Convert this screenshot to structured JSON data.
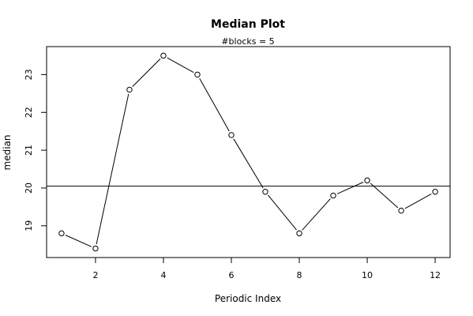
{
  "chart_data": {
    "type": "line",
    "title": "Median Plot",
    "subtitle": "#blocks =  5",
    "xlabel": "Periodic Index",
    "ylabel": "median",
    "x": [
      1,
      2,
      3,
      4,
      5,
      6,
      7,
      8,
      9,
      10,
      11,
      12
    ],
    "series": [
      {
        "values": [
          18.8,
          18.4,
          22.6,
          23.5,
          23.0,
          21.4,
          19.9,
          18.8,
          19.8,
          20.2,
          19.4,
          19.9
        ]
      }
    ],
    "reference_line_y": 20.05,
    "xlim": [
      0.56,
      12.44
    ],
    "ylim": [
      18.16,
      23.74
    ],
    "x_ticks": [
      2,
      4,
      6,
      8,
      10,
      12
    ],
    "y_ticks": [
      19,
      20,
      21,
      22,
      23
    ],
    "grid": false,
    "marker": "open-circle"
  }
}
